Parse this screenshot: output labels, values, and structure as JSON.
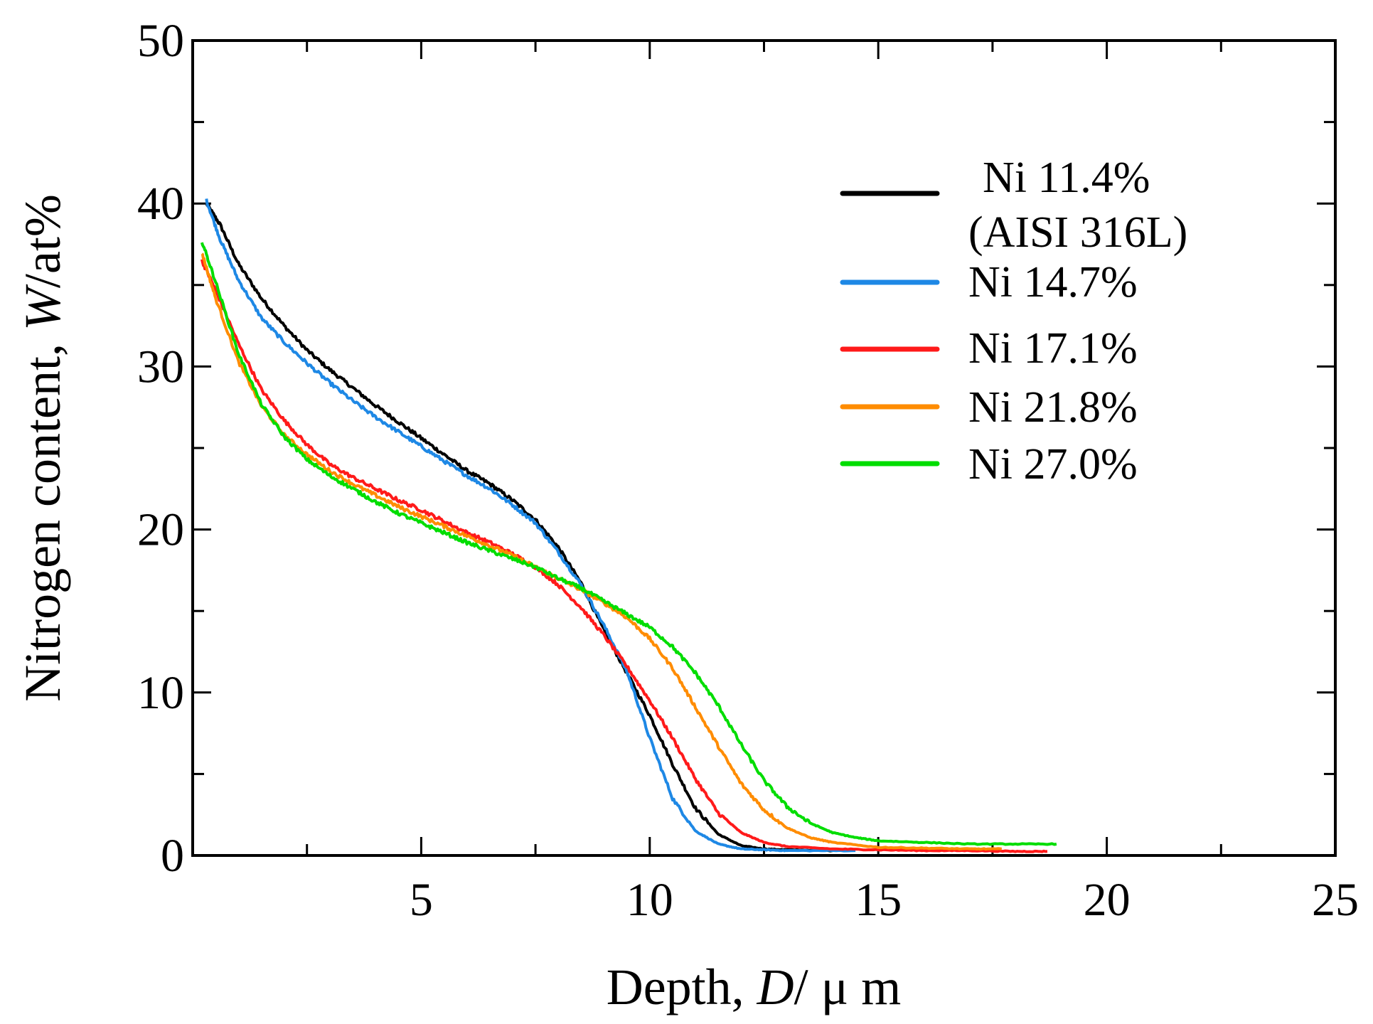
{
  "chart_data": {
    "type": "line",
    "title": "",
    "xlabel": {
      "prefix": "Depth, ",
      "symbol": "D",
      "unit": "/ μ m"
    },
    "ylabel": {
      "prefix": "Nitrogen content, ",
      "symbol": "W",
      "unit": "/at%"
    },
    "xlim": [
      0,
      25
    ],
    "ylim": [
      0,
      50
    ],
    "xticks": [
      5,
      10,
      15,
      20,
      25
    ],
    "yticks": [
      0,
      10,
      20,
      30,
      40,
      50
    ],
    "x_minor_step": 2.5,
    "y_minor_step": 5,
    "legend_position": "right-upper",
    "series": [
      {
        "name": "Ni 11.4%",
        "name_line2": "(AISI 316L)",
        "color": "#000000",
        "x": [
          0.3,
          0.6,
          1,
          1.5,
          2,
          2.5,
          3,
          3.5,
          4,
          4.5,
          5,
          5.5,
          6,
          6.5,
          7,
          7.5,
          8,
          8.5,
          9,
          9.5,
          10,
          10.5,
          11,
          11.5,
          12,
          12.5,
          13,
          14
        ],
        "y": [
          40,
          38.7,
          36.3,
          34.2,
          32.5,
          31,
          29.8,
          28.7,
          27.6,
          26.6,
          25.6,
          24.6,
          23.6,
          22.8,
          21.8,
          20.6,
          18.9,
          16.7,
          13.8,
          11.2,
          8.6,
          5.6,
          2.9,
          1.3,
          0.6,
          0.4,
          0.35,
          0.3
        ]
      },
      {
        "name": "Ni 14.7%",
        "color": "#1e88e5",
        "x": [
          0.3,
          0.6,
          1,
          1.5,
          2,
          2.5,
          3,
          3.5,
          4,
          4.5,
          5,
          5.5,
          6,
          6.5,
          7,
          7.5,
          8,
          8.5,
          9,
          9.5,
          10,
          10.5,
          11,
          11.5,
          12,
          12.5,
          13,
          14.5
        ],
        "y": [
          40.2,
          37.8,
          35.3,
          33,
          31.5,
          30.2,
          29,
          27.9,
          26.9,
          26,
          25.1,
          24.2,
          23.3,
          22.5,
          21.5,
          20.4,
          18.6,
          16.6,
          14.1,
          11.3,
          7.2,
          3.5,
          1.5,
          0.7,
          0.4,
          0.35,
          0.3,
          0.3
        ]
      },
      {
        "name": "Ni 17.1%",
        "color": "#ff1a1a",
        "x": [
          0.2,
          0.5,
          1,
          1.5,
          2,
          2.5,
          3,
          3.5,
          4,
          4.5,
          5,
          5.5,
          6,
          6.5,
          7,
          7.5,
          8,
          8.5,
          9,
          9.5,
          10,
          10.5,
          11,
          11.5,
          12,
          12.5,
          13,
          14,
          15,
          16,
          17,
          18,
          18.7
        ],
        "y": [
          36.5,
          34.7,
          31.4,
          28.6,
          26.7,
          25.2,
          24,
          23.2,
          22.5,
          21.8,
          21.2,
          20.5,
          19.8,
          19.2,
          18.5,
          17.7,
          16.6,
          15.2,
          13.5,
          11.6,
          9.5,
          7.2,
          4.7,
          2.6,
          1.4,
          0.8,
          0.55,
          0.4,
          0.35,
          0.3,
          0.3,
          0.25,
          0.25
        ]
      },
      {
        "name": "Ni 21.8%",
        "color": "#ff8c00",
        "x": [
          0.2,
          0.5,
          1,
          1.5,
          2,
          2.5,
          3,
          3.5,
          4,
          4.5,
          5,
          5.5,
          6,
          6.5,
          7,
          7.5,
          8,
          8.5,
          9,
          9.5,
          10,
          10.5,
          11,
          11.5,
          12,
          12.5,
          13,
          13.5,
          14,
          15,
          16,
          17,
          17.7
        ],
        "y": [
          37,
          34.2,
          30.3,
          27.6,
          25.8,
          24.6,
          23.6,
          22.8,
          22.1,
          21.4,
          20.8,
          20.2,
          19.6,
          19,
          18.4,
          17.7,
          17,
          16.3,
          15.5,
          14.6,
          13.3,
          11.5,
          9.1,
          6.7,
          4.4,
          2.8,
          1.7,
          1.1,
          0.8,
          0.5,
          0.45,
          0.4,
          0.4
        ]
      },
      {
        "name": "Ni 27.0%",
        "color": "#00dd00",
        "x": [
          0.2,
          0.5,
          1,
          1.5,
          2,
          2.5,
          3,
          3.5,
          4,
          4.5,
          5,
          5.5,
          6,
          6.5,
          7,
          7.5,
          8,
          8.5,
          9,
          9.5,
          10,
          10.5,
          11,
          11.5,
          12,
          12.5,
          13,
          13.5,
          14,
          14.5,
          15,
          16,
          17,
          18,
          18.9
        ],
        "y": [
          37.7,
          35.2,
          30.8,
          27.7,
          25.7,
          24.3,
          23.3,
          22.5,
          21.7,
          21,
          20.4,
          19.8,
          19.2,
          18.7,
          18.2,
          17.7,
          17,
          16.4,
          15.6,
          14.8,
          14,
          12.8,
          11.2,
          9.2,
          6.8,
          4.6,
          3,
          2,
          1.4,
          1.1,
          0.9,
          0.8,
          0.7,
          0.7,
          0.7
        ]
      }
    ]
  }
}
